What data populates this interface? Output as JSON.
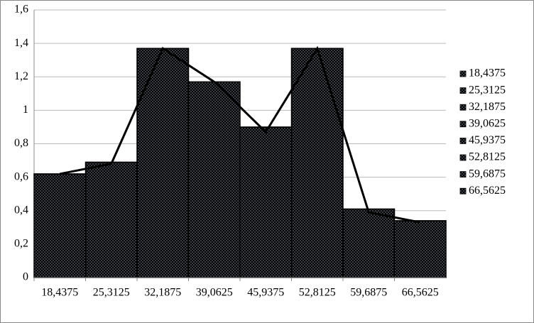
{
  "chart_data": {
    "type": "bar",
    "categories": [
      "18,4375",
      "25,3125",
      "32,1875",
      "39,0625",
      "45,9375",
      "52,8125",
      "59,6875",
      "66,5625"
    ],
    "series": [
      {
        "type": "bar",
        "color": "#4f81bd",
        "values": [
          0.62,
          0.69,
          1.37,
          1.17,
          0.9,
          1.37,
          0.41,
          0.34
        ]
      },
      {
        "type": "line",
        "color": "#000000",
        "values": [
          0.62,
          0.68,
          1.37,
          1.17,
          0.87,
          1.37,
          0.39,
          0.33
        ]
      }
    ],
    "ylim": [
      0,
      1.6
    ],
    "yticks": [
      0,
      {
        "value": 0.2,
        "label": "0,2"
      },
      {
        "value": 0.4,
        "label": "0,4"
      },
      {
        "value": 0.6,
        "label": "0,6"
      },
      {
        "value": 0.8,
        "label": "0,8"
      },
      1,
      {
        "value": 1.2,
        "label": "1,2"
      },
      {
        "value": 1.4,
        "label": "1,4"
      },
      {
        "value": 1.6,
        "label": "1,6"
      }
    ],
    "grid": true,
    "legend": "right"
  }
}
